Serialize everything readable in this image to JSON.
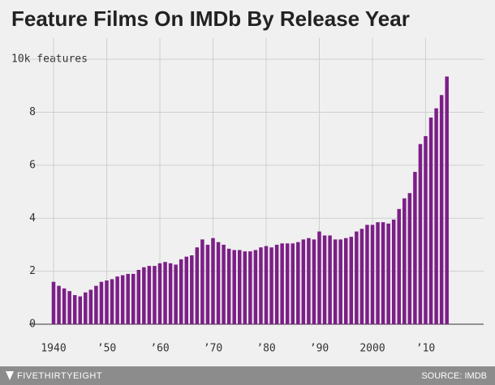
{
  "chart_data": {
    "type": "bar",
    "title": "Feature Films On IMDb By Release Year",
    "brand": "FIVETHIRTYEIGHT",
    "source": "SOURCE: IMDB",
    "color": "#7b1f86",
    "grid": true,
    "categories": [
      "1940",
      null,
      null,
      null,
      null,
      null,
      null,
      null,
      null,
      null,
      "’50",
      null,
      null,
      null,
      null,
      null,
      null,
      null,
      null,
      null,
      "’60",
      null,
      null,
      null,
      null,
      null,
      null,
      null,
      null,
      null,
      "’70",
      null,
      null,
      null,
      null,
      null,
      null,
      null,
      null,
      null,
      "’80",
      null,
      null,
      null,
      null,
      null,
      null,
      null,
      null,
      null,
      "’90",
      null,
      null,
      null,
      null,
      null,
      null,
      null,
      null,
      null,
      "2000",
      null,
      null,
      null,
      null,
      null,
      null,
      null,
      null,
      null,
      "’10",
      null,
      null,
      null,
      null
    ],
    "values": [
      1.6,
      1.45,
      1.35,
      1.25,
      1.1,
      1.05,
      1.2,
      1.3,
      1.45,
      1.6,
      1.65,
      1.7,
      1.8,
      1.85,
      1.9,
      1.9,
      2.05,
      2.15,
      2.2,
      2.2,
      2.3,
      2.35,
      2.3,
      2.25,
      2.45,
      2.55,
      2.6,
      2.9,
      3.2,
      3.0,
      3.25,
      3.1,
      3.0,
      2.85,
      2.8,
      2.8,
      2.75,
      2.75,
      2.8,
      2.9,
      2.95,
      2.9,
      3.0,
      3.05,
      3.05,
      3.05,
      3.1,
      3.2,
      3.25,
      3.2,
      3.5,
      3.35,
      3.35,
      3.2,
      3.2,
      3.25,
      3.3,
      3.5,
      3.6,
      3.75,
      3.75,
      3.85,
      3.85,
      3.8,
      3.95,
      4.35,
      4.75,
      4.95,
      5.75,
      6.8,
      7.1,
      7.8,
      8.15,
      8.65,
      9.35
    ],
    "ylim": [
      0,
      10.8
    ],
    "yticks": [
      0,
      2,
      4,
      6,
      8,
      {
        "value": 10,
        "label": "10k features"
      }
    ]
  }
}
